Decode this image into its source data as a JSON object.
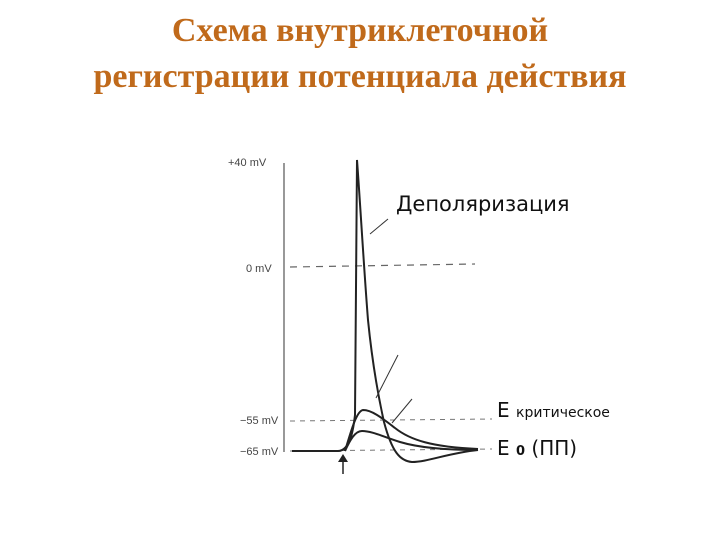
{
  "title": {
    "line1": "Схема внутриклеточной",
    "line2": "регистрации потенциала действия"
  },
  "axis": {
    "labels": [
      "+40 mV",
      "0 mV",
      "−55 mV",
      "−65 mV"
    ]
  },
  "annotations": {
    "depolarization": "Деполяризация",
    "e_critical_main": "E",
    "e_critical_sub": "критическое",
    "e_zero_main": "E",
    "e_zero_sub": "0",
    "e_zero_paren": "(ПП)"
  },
  "colors": {
    "title": "#c06a1b",
    "trace": "#222222",
    "dashed": "#666666"
  }
}
